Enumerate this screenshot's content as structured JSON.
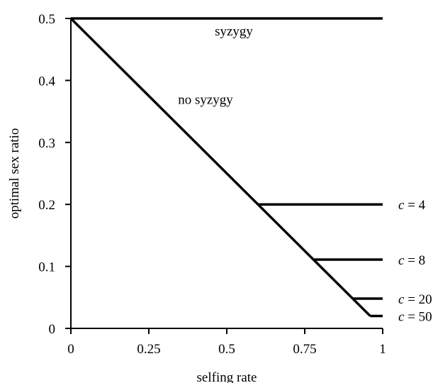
{
  "chart_data": {
    "type": "line",
    "title": "",
    "xlabel": "selfing rate",
    "ylabel": "optimal sex ratio",
    "xlim": [
      0,
      1
    ],
    "ylim": [
      0,
      0.5
    ],
    "x_ticks": [
      0,
      0.25,
      0.5,
      0.75,
      1
    ],
    "x_tick_labels": [
      "0",
      "0.25",
      "0.5",
      "0.75",
      "1"
    ],
    "y_ticks": [
      0,
      0.1,
      0.2,
      0.3,
      0.4,
      0.5
    ],
    "y_tick_labels": [
      "0",
      "0.1",
      "0.2",
      "0.3",
      "0.4",
      "0.5"
    ],
    "grid": false,
    "series": [
      {
        "name": "syzygy",
        "x": [
          0,
          1
        ],
        "y": [
          0.5,
          0.5
        ]
      },
      {
        "name": "no syzygy",
        "x": [
          0,
          0.96
        ],
        "y": [
          0.5,
          0.02
        ]
      },
      {
        "name": "c = 4",
        "x": [
          0.6,
          1
        ],
        "y": [
          0.2,
          0.2
        ]
      },
      {
        "name": "c = 8",
        "x": [
          0.78,
          1
        ],
        "y": [
          0.111,
          0.111
        ]
      },
      {
        "name": "c = 20",
        "x": [
          0.905,
          1
        ],
        "y": [
          0.048,
          0.048
        ]
      },
      {
        "name": "c = 50",
        "x": [
          0.96,
          1
        ],
        "y": [
          0.02,
          0.02
        ]
      }
    ],
    "annotations": [
      {
        "text": "syzygy",
        "x": 0.5,
        "y": 0.5
      },
      {
        "text": "no syzygy",
        "x": 0.4,
        "y": 0.37
      }
    ],
    "end_labels": [
      {
        "var": "c",
        "rest": " = 4",
        "y": 0.2
      },
      {
        "var": "c",
        "rest": " = 8",
        "y": 0.111
      },
      {
        "var": "c",
        "rest": " = 20",
        "y": 0.048
      },
      {
        "var": "c",
        "rest": " = 50",
        "y": 0.02
      }
    ],
    "line_color": "#000000"
  }
}
